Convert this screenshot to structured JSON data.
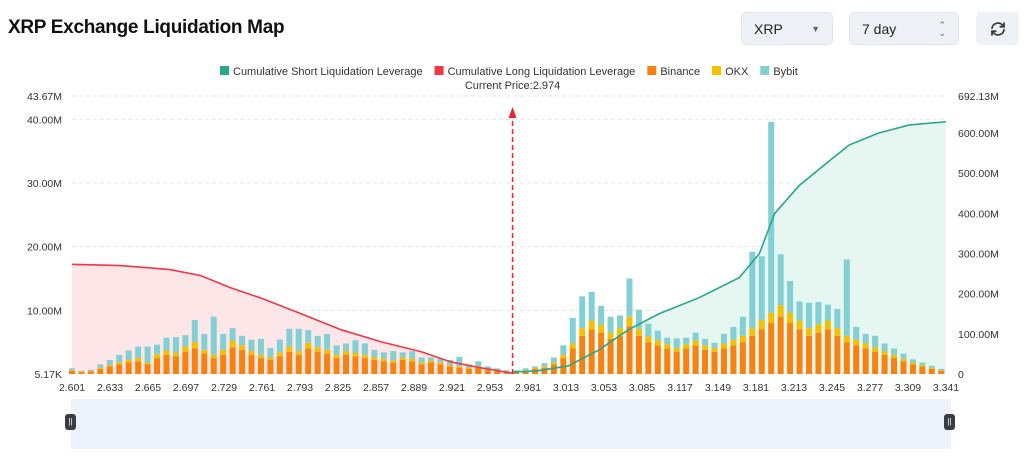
{
  "header": {
    "title": "XRP Exchange Liquidation Map",
    "coin_select": "XRP",
    "range_select": "7 day",
    "refresh_icon": "refresh-icon"
  },
  "colors": {
    "short": "#26a88a",
    "long": "#f23645",
    "binance": "#f7820f",
    "okx": "#f5c000",
    "bybit": "#82d0d4",
    "short_fill": "#e6f6f1",
    "long_fill": "#fde6e8",
    "current_price": "#e8282b"
  },
  "chart_data": {
    "type": "bar+line",
    "legend": [
      "Cumulative Short Liquidation Leverage",
      "Cumulative Long Liquidation Leverage",
      "Binance",
      "OKX",
      "Bybit"
    ],
    "legend_placement": "top-center",
    "current_price_label": "Current Price:2.974",
    "current_price": 2.974,
    "x_ticks": [
      "2.601",
      "2.633",
      "2.665",
      "2.697",
      "2.729",
      "2.761",
      "2.793",
      "2.825",
      "2.857",
      "2.889",
      "2.921",
      "2.953",
      "2.981",
      "3.013",
      "3.053",
      "3.085",
      "3.117",
      "3.149",
      "3.181",
      "3.213",
      "3.245",
      "3.277",
      "3.309",
      "3.341"
    ],
    "x_range": [
      2.601,
      3.341
    ],
    "y_left_ticks": [
      "5.17K",
      "10.00M",
      "20.00M",
      "30.00M",
      "40.00M",
      "43.67M"
    ],
    "y_left_range": [
      0,
      43.67
    ],
    "y_right_ticks": [
      "0",
      "100.00M",
      "200.00M",
      "300.00M",
      "400.00M",
      "500.00M",
      "600.00M",
      "692.13M"
    ],
    "y_right_range": [
      0,
      692.13
    ],
    "grid": "horizontal dashed",
    "bar_price_start": 2.601,
    "bar_price_step": 0.008,
    "binance": [
      0.5,
      0.3,
      0.4,
      0.8,
      1.2,
      1.5,
      1.8,
      2.0,
      1.5,
      2.5,
      3.0,
      2.8,
      3.5,
      4.0,
      3.2,
      2.5,
      3.0,
      4.2,
      3.8,
      3.0,
      2.5,
      2.2,
      2.8,
      3.5,
      3.0,
      4.0,
      3.5,
      3.2,
      2.5,
      3.0,
      2.8,
      2.5,
      2.2,
      2.0,
      1.8,
      2.2,
      2.0,
      1.5,
      1.8,
      1.5,
      1.2,
      1.0,
      0.8,
      1.0,
      0.6,
      0.5,
      0.3,
      0.3,
      0.5,
      0.8,
      1.0,
      1.5,
      2.5,
      4.0,
      6.0,
      7.0,
      6.5,
      5.5,
      6.0,
      7.5,
      6.0,
      5.0,
      4.5,
      4.0,
      3.5,
      4.0,
      4.5,
      3.8,
      3.5,
      4.0,
      4.5,
      5.0,
      6.0,
      7.0,
      8.0,
      9.0,
      8.0,
      7.0,
      6.0,
      6.5,
      7.0,
      6.0,
      5.0,
      4.5,
      4.0,
      3.5,
      3.0,
      2.5,
      2.0,
      1.5,
      1.2,
      0.8,
      0.5
    ],
    "okx": [
      0.1,
      0.1,
      0.1,
      0.2,
      0.2,
      0.3,
      0.4,
      0.5,
      0.3,
      0.6,
      0.7,
      0.5,
      0.8,
      1.0,
      0.6,
      0.5,
      0.8,
      1.0,
      0.7,
      0.6,
      0.5,
      0.4,
      0.6,
      0.8,
      0.6,
      0.9,
      0.7,
      0.6,
      0.5,
      0.6,
      0.5,
      0.5,
      0.4,
      0.4,
      0.3,
      0.4,
      0.4,
      0.3,
      0.3,
      0.3,
      0.2,
      0.2,
      0.2,
      0.2,
      0.1,
      0.1,
      0.1,
      0.1,
      0.1,
      0.2,
      0.2,
      0.3,
      0.5,
      0.8,
      1.2,
      1.4,
      1.2,
      1.0,
      1.2,
      1.5,
      1.1,
      0.9,
      0.8,
      0.7,
      0.6,
      0.7,
      0.8,
      0.7,
      0.6,
      0.8,
      0.9,
      1.0,
      1.2,
      1.5,
      1.6,
      1.8,
      1.6,
      1.4,
      1.2,
      1.3,
      1.4,
      1.2,
      1.0,
      0.9,
      0.8,
      0.7,
      0.6,
      0.5,
      0.4,
      0.3,
      0.2,
      0.2,
      0.1
    ],
    "bybit": [
      0.3,
      0.1,
      0.2,
      0.5,
      0.8,
      1.2,
      1.5,
      1.8,
      2.5,
      1.5,
      2.0,
      2.5,
      1.8,
      3.5,
      2.5,
      6.0,
      2.5,
      2.0,
      1.5,
      1.8,
      2.5,
      1.5,
      2.0,
      2.8,
      3.5,
      2.0,
      1.8,
      2.5,
      1.5,
      1.2,
      2.0,
      1.8,
      1.2,
      1.0,
      1.5,
      0.8,
      1.2,
      0.8,
      0.5,
      0.6,
      0.8,
      1.5,
      0.5,
      0.8,
      0.5,
      0.3,
      0.2,
      0.2,
      0.3,
      0.2,
      0.5,
      0.8,
      1.5,
      4.0,
      5.0,
      4.5,
      3.0,
      2.5,
      2.0,
      6.0,
      3.0,
      2.0,
      1.5,
      1.0,
      1.5,
      1.0,
      1.2,
      1.0,
      0.8,
      1.5,
      2.0,
      3.0,
      12.0,
      10.0,
      30.0,
      8.0,
      5.0,
      3.0,
      4.0,
      3.5,
      2.5,
      3.0,
      12.0,
      2.0,
      1.5,
      1.8,
      1.2,
      1.0,
      0.8,
      0.5,
      0.4,
      0.3,
      0.2
    ],
    "long_cumulative": {
      "x": [
        2.601,
        2.642,
        2.684,
        2.71,
        2.735,
        2.76,
        2.795,
        2.829,
        2.863,
        2.897,
        2.922,
        2.948,
        2.974
      ],
      "y": [
        273,
        270,
        260,
        245,
        215,
        190,
        150,
        110,
        80,
        55,
        30,
        15,
        2
      ]
    },
    "short_cumulative": {
      "x": [
        2.974,
        2.995,
        3.021,
        3.047,
        3.072,
        3.098,
        3.132,
        3.166,
        3.183,
        3.196,
        3.217,
        3.242,
        3.259,
        3.284,
        3.31,
        3.341
      ],
      "y": [
        5,
        8,
        20,
        60,
        110,
        150,
        190,
        240,
        300,
        400,
        470,
        530,
        570,
        600,
        620,
        628
      ]
    }
  }
}
